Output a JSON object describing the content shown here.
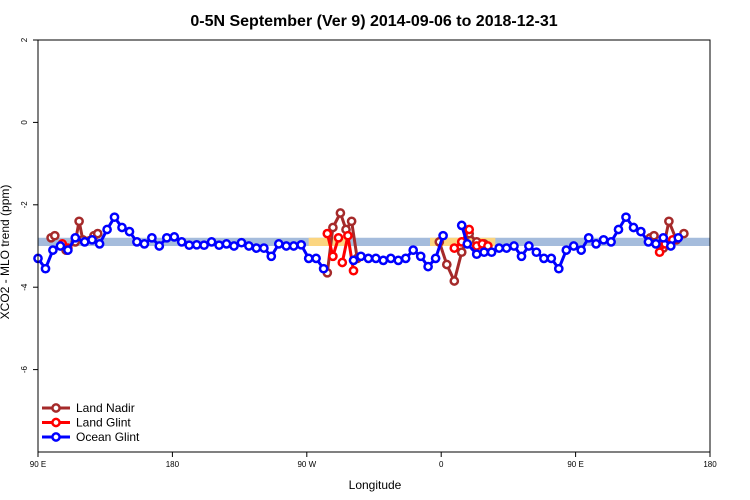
{
  "chart_data": {
    "type": "line",
    "title": "0-5N September (Ver 9)   2014-09-06 to 2018-12-31",
    "xlabel": "Longitude",
    "ylabel": "XCO2 - MLO trend (ppm)",
    "xlim": [
      90,
      450
    ],
    "ylim": [
      -8,
      2
    ],
    "x_ticks": [
      {
        "value": 90,
        "label": "90 E"
      },
      {
        "value": 162,
        "label": "180"
      },
      {
        "value": 234,
        "label": "90 W"
      },
      {
        "value": 306,
        "label": "0"
      },
      {
        "value": 378,
        "label": "90 E"
      },
      {
        "value": 450,
        "label": "180"
      }
    ],
    "y_ticks": [
      {
        "value": 2,
        "label": "2"
      },
      {
        "value": 0,
        "label": "0"
      },
      {
        "value": -2,
        "label": "-2"
      },
      {
        "value": -4,
        "label": "-4"
      },
      {
        "value": -6,
        "label": "-6"
      }
    ],
    "bands": [
      {
        "name": "ocean_band",
        "color": "#a5bcdc",
        "ranges": [
          [
            90,
            450
          ]
        ],
        "ymin": -3.0,
        "ymax": -2.8
      },
      {
        "name": "land_band",
        "color": "#fbd580",
        "ranges": [
          [
            235,
            256
          ],
          [
            300,
            335
          ]
        ],
        "ymin": -3.0,
        "ymax": -2.8
      }
    ],
    "legend": "bottom-left",
    "series": [
      {
        "name": "Land Nadir",
        "color": "#a52a2a",
        "segments": [
          [
            [
              97,
              -2.8
            ],
            [
              99,
              -2.75
            ]
          ],
          [
            [
              105,
              -3.1
            ],
            [
              110,
              -2.9
            ],
            [
              112,
              -2.4
            ],
            [
              114,
              -2.85
            ],
            [
              120,
              -2.75
            ],
            [
              122,
              -2.7
            ]
          ],
          [
            [
              245,
              -3.65
            ],
            [
              248,
              -2.55
            ],
            [
              252,
              -2.2
            ],
            [
              255,
              -2.6
            ],
            [
              258,
              -2.4
            ],
            [
              261,
              -3.3
            ]
          ],
          [
            [
              305,
              -2.9
            ],
            [
              309,
              -3.45
            ],
            [
              313,
              -3.85
            ],
            [
              317,
              -3.15
            ],
            [
              321,
              -2.7
            ],
            [
              325,
              -2.9
            ],
            [
              329,
              -2.95
            ]
          ],
          [
            [
              418,
              -2.8
            ],
            [
              420,
              -2.75
            ]
          ],
          [
            [
              425,
              -3.05
            ],
            [
              428,
              -2.4
            ],
            [
              432,
              -2.85
            ],
            [
              436,
              -2.7
            ]
          ]
        ]
      },
      {
        "name": "Land Glint",
        "color": "#ff0000",
        "segments": [
          [
            [
              103,
              -2.95
            ],
            [
              106,
              -3.05
            ]
          ],
          [
            [
              245,
              -2.7
            ],
            [
              248,
              -3.25
            ],
            [
              251,
              -2.8
            ]
          ],
          [
            [
              253,
              -3.4
            ],
            [
              256,
              -2.75
            ],
            [
              259,
              -3.6
            ]
          ],
          [
            [
              313,
              -3.05
            ],
            [
              317,
              -2.9
            ],
            [
              321,
              -2.6
            ]
          ],
          [
            [
              325,
              -3.0
            ],
            [
              328,
              -2.95
            ],
            [
              331,
              -3.0
            ]
          ],
          [
            [
              423,
              -3.15
            ],
            [
              426,
              -2.95
            ],
            [
              430,
              -2.85
            ]
          ]
        ]
      },
      {
        "name": "Ocean Glint",
        "color": "#0000ff",
        "segments": [
          [
            [
              90,
              -3.3
            ],
            [
              94,
              -3.55
            ],
            [
              98,
              -3.1
            ],
            [
              102,
              -3.0
            ],
            [
              106,
              -3.1
            ],
            [
              110,
              -2.8
            ],
            [
              115,
              -2.9
            ],
            [
              119,
              -2.85
            ],
            [
              123,
              -2.95
            ],
            [
              127,
              -2.6
            ],
            [
              131,
              -2.3
            ],
            [
              135,
              -2.55
            ],
            [
              139,
              -2.65
            ],
            [
              143,
              -2.9
            ],
            [
              147,
              -2.95
            ],
            [
              151,
              -2.8
            ],
            [
              155,
              -3.0
            ],
            [
              159,
              -2.8
            ],
            [
              163,
              -2.78
            ],
            [
              167,
              -2.9
            ],
            [
              171,
              -2.98
            ],
            [
              175,
              -2.97
            ],
            [
              179,
              -2.98
            ],
            [
              183,
              -2.9
            ],
            [
              187,
              -2.98
            ],
            [
              191,
              -2.95
            ],
            [
              195,
              -3.0
            ],
            [
              199,
              -2.92
            ],
            [
              203,
              -3.0
            ],
            [
              207,
              -3.05
            ],
            [
              211,
              -3.05
            ],
            [
              215,
              -3.25
            ],
            [
              219,
              -2.95
            ],
            [
              223,
              -3.0
            ],
            [
              227,
              -3.0
            ],
            [
              231,
              -2.97
            ],
            [
              235,
              -3.3
            ],
            [
              239,
              -3.3
            ],
            [
              243,
              -3.55
            ]
          ],
          [
            [
              259,
              -3.35
            ],
            [
              263,
              -3.25
            ],
            [
              267,
              -3.3
            ],
            [
              271,
              -3.3
            ],
            [
              275,
              -3.35
            ],
            [
              279,
              -3.3
            ],
            [
              283,
              -3.35
            ],
            [
              287,
              -3.3
            ],
            [
              291,
              -3.1
            ],
            [
              295,
              -3.25
            ],
            [
              299,
              -3.5
            ],
            [
              303,
              -3.3
            ],
            [
              307,
              -2.75
            ]
          ],
          [
            [
              317,
              -2.5
            ],
            [
              320,
              -2.95
            ],
            [
              325,
              -3.2
            ],
            [
              329,
              -3.15
            ],
            [
              333,
              -3.15
            ],
            [
              337,
              -3.05
            ],
            [
              341,
              -3.05
            ],
            [
              345,
              -3.0
            ],
            [
              349,
              -3.25
            ],
            [
              353,
              -3.0
            ],
            [
              357,
              -3.15
            ],
            [
              361,
              -3.3
            ],
            [
              365,
              -3.3
            ],
            [
              369,
              -3.55
            ],
            [
              373,
              -3.1
            ],
            [
              377,
              -3.0
            ],
            [
              381,
              -3.1
            ],
            [
              385,
              -2.8
            ],
            [
              389,
              -2.95
            ],
            [
              393,
              -2.85
            ],
            [
              397,
              -2.9
            ],
            [
              401,
              -2.6
            ],
            [
              405,
              -2.3
            ],
            [
              409,
              -2.55
            ],
            [
              413,
              -2.65
            ],
            [
              417,
              -2.9
            ],
            [
              421,
              -2.95
            ],
            [
              425,
              -2.8
            ],
            [
              429,
              -3.0
            ],
            [
              433,
              -2.8
            ]
          ]
        ]
      }
    ]
  }
}
